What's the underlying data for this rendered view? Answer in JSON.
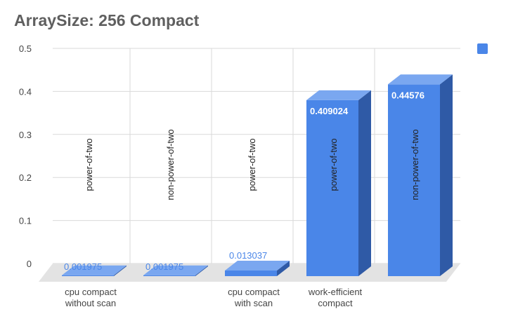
{
  "chart_data": {
    "type": "bar",
    "title": "ArraySize: 256 Compact",
    "xlabel": "",
    "ylabel": "",
    "ylim": [
      0,
      0.5
    ],
    "yticks": [
      "0",
      "0.1",
      "0.2",
      "0.3",
      "0.4",
      "0.5"
    ],
    "categories": [
      [
        "cpu compact",
        "without scan"
      ],
      [],
      [
        "cpu compact",
        "with scan"
      ],
      [
        "work-efficient",
        "compact"
      ],
      []
    ],
    "series": [
      {
        "values": [
          0.001975,
          0.001975,
          0.013037,
          0.409024,
          0.44576
        ],
        "data_labels": [
          "0.001975",
          "0.001975",
          "0.013037",
          "0.409024",
          "0.44576"
        ],
        "annotations": [
          "power-of-two",
          "non-power-of-two",
          "power-of-two",
          "power-of-two",
          "non-power-of-two"
        ]
      }
    ],
    "grid": true,
    "legend": "top-right",
    "colors": {
      "bar_front": "#4a86e8",
      "bar_side": "#2f5aa6",
      "bar_top": "#7aa7f0",
      "grid": "#d9d9d9",
      "floor": "#e3e3e3"
    }
  }
}
